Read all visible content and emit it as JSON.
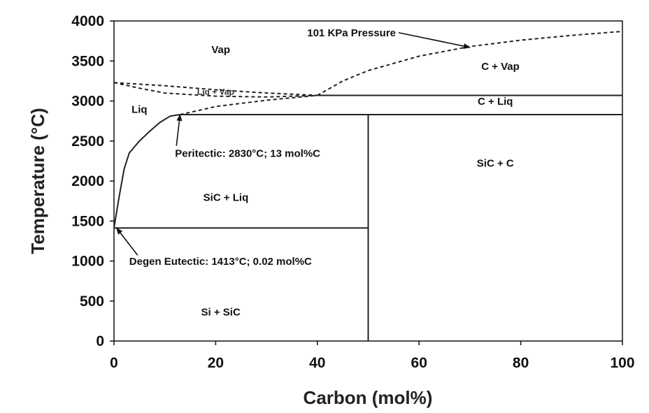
{
  "chart_data": {
    "type": "line",
    "title": "",
    "xlabel": "Carbon (mol%)",
    "ylabel": "Temperature (°C)",
    "xlim": [
      0,
      100
    ],
    "ylim": [
      0,
      4000
    ],
    "x_ticks": [
      "0",
      "20",
      "40",
      "60",
      "80",
      "100"
    ],
    "y_ticks": [
      "0",
      "500",
      "1000",
      "1500",
      "2000",
      "2500",
      "3000",
      "3500",
      "4000"
    ],
    "grid": false,
    "lines": {
      "liquidus": {
        "style": "solid",
        "x": [
          0,
          1,
          2,
          3,
          5,
          7,
          9,
          11,
          13
        ],
        "y": [
          1414,
          1800,
          2150,
          2350,
          2500,
          2620,
          2730,
          2810,
          2830
        ]
      },
      "peritectic_isotherm": {
        "style": "solid",
        "x": [
          13,
          100
        ],
        "y": [
          2830,
          2830
        ]
      },
      "c_liq_boundary": {
        "style": "solid",
        "x": [
          40,
          100
        ],
        "y": [
          3070,
          3070
        ]
      },
      "eutectic_isotherm": {
        "style": "solid",
        "x": [
          0,
          50
        ],
        "y": [
          1413,
          1413
        ]
      },
      "sic_line": {
        "style": "solid",
        "x": [
          50,
          50
        ],
        "y": [
          0,
          2830
        ]
      },
      "liq_vap_upper": {
        "style": "dashed",
        "x": [
          0,
          10,
          20,
          30,
          40
        ],
        "y": [
          3230,
          3190,
          3140,
          3100,
          3070
        ]
      },
      "liq_vap_lower": {
        "style": "dashed",
        "x": [
          0,
          5,
          10,
          20,
          30,
          40
        ],
        "y": [
          3230,
          3160,
          3100,
          3060,
          3050,
          3070
        ]
      },
      "peritectic_extension": {
        "style": "dashed",
        "x": [
          13,
          20,
          30,
          40
        ],
        "y": [
          2830,
          2930,
          3010,
          3070
        ]
      },
      "pressure_101kpa": {
        "style": "dashed",
        "x": [
          40,
          45,
          50,
          60,
          70,
          80,
          90,
          100
        ],
        "y": [
          3070,
          3250,
          3380,
          3560,
          3680,
          3760,
          3820,
          3870
        ]
      }
    },
    "regions": [
      {
        "label": "Vap",
        "x": 21,
        "y": 3600
      },
      {
        "label": "Liq + Vap",
        "x": 20,
        "y": 3080,
        "small": true
      },
      {
        "label": "Liq",
        "x": 5,
        "y": 2850
      },
      {
        "label": "C + Vap",
        "x": 76,
        "y": 3390
      },
      {
        "label": "C + Liq",
        "x": 75,
        "y": 2950
      },
      {
        "label": "SiC + Liq",
        "x": 22,
        "y": 1750
      },
      {
        "label": "SiC + C",
        "x": 75,
        "y": 2180
      },
      {
        "label": "Si + SiC",
        "x": 21,
        "y": 320
      }
    ],
    "annotations": [
      {
        "text": "101 KPa Pressure",
        "text_x": 38,
        "text_y": 3810,
        "target_x": 70,
        "target_y": 3670,
        "anchor": "start"
      },
      {
        "text": "Peritectic: 2830°C; 13 mol%C",
        "text_x": 12,
        "text_y": 2300,
        "target_x": 13,
        "target_y": 2830,
        "anchor": "start"
      },
      {
        "text": "Degen Eutectic: 1413°C; 0.02 mol%C",
        "text_x": 3,
        "text_y": 950,
        "target_x": 0.5,
        "target_y": 1413,
        "anchor": "start"
      }
    ]
  }
}
